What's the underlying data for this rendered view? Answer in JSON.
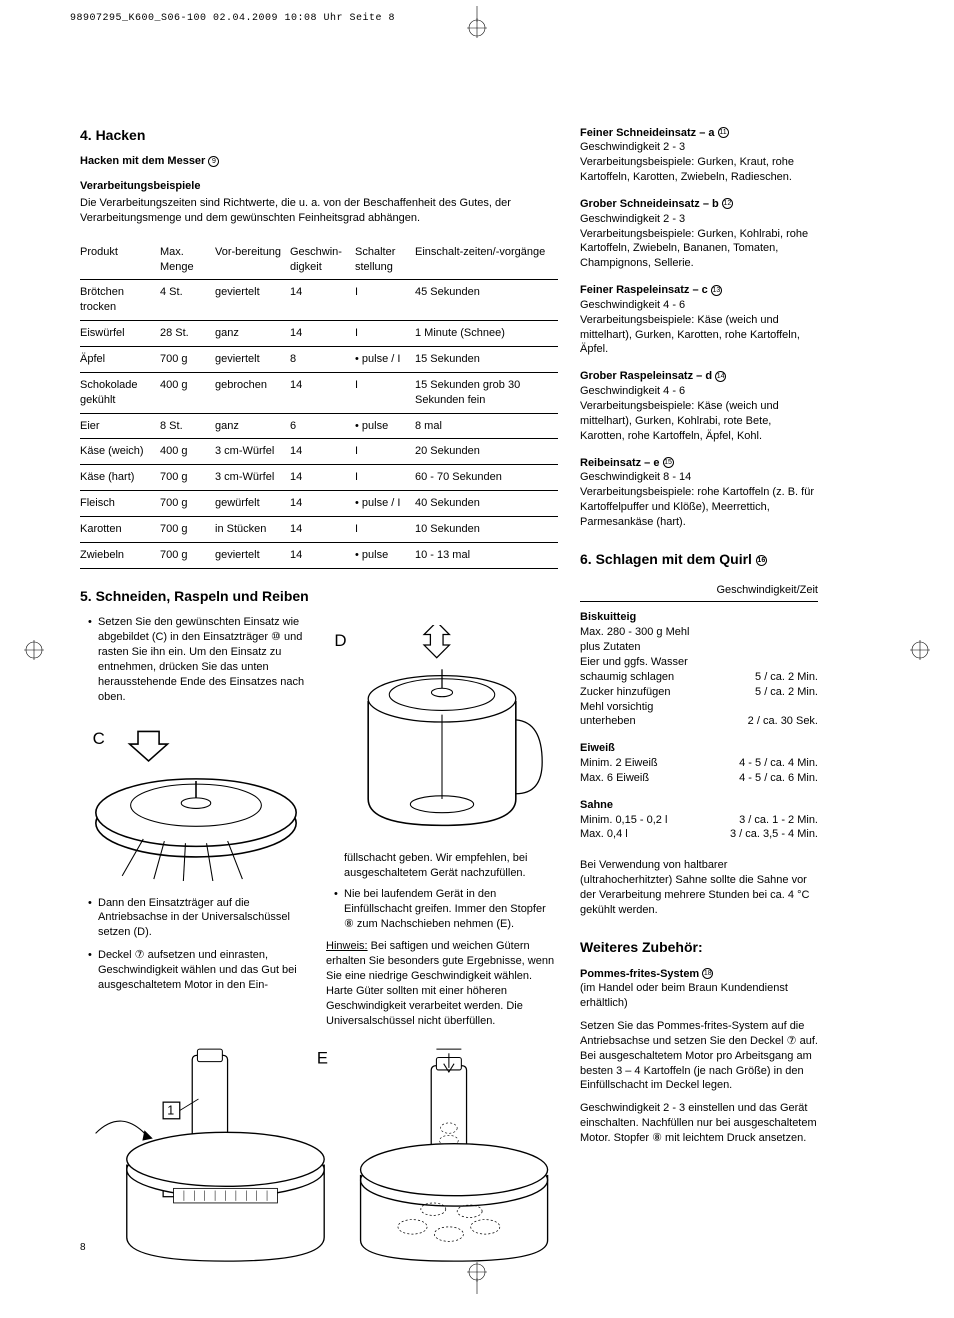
{
  "header_line": "98907295_K600_S06-100  02.04.2009  10:08 Uhr  Seite 8",
  "page_number": "8",
  "section4": {
    "title": "4. Hacken",
    "subtitle1": "Hacken mit dem Messer",
    "subtitle1_ref": "⑨",
    "subtitle2": "Verarbeitungsbeispiele",
    "intro": "Die Verarbeitungszeiten sind Richtwerte, die u. a. von der Beschaffenheit des Gutes, der Verarbeitungsmenge und dem gewünschten Feinheitsgrad abhängen.",
    "columns": [
      "Produkt",
      "Max. Menge",
      "Vor-bereitung",
      "Geschwin-digkeit",
      "Schalter stellung",
      "Einschalt-zeiten/-vorgänge"
    ],
    "rows": [
      [
        "Brötchen trocken",
        "4 St.",
        "geviertelt",
        "14",
        "I",
        "45 Sekunden"
      ],
      [
        "Eiswürfel",
        "28 St.",
        "ganz",
        "14",
        "I",
        "1 Minute (Schnee)"
      ],
      [
        "Äpfel",
        "700 g",
        "geviertelt",
        "8",
        "• pulse / I",
        "15 Sekunden"
      ],
      [
        "Schokolade gekühlt",
        "400 g",
        "gebrochen",
        "14",
        "I",
        "15 Sekunden grob 30 Sekunden fein"
      ],
      [
        "Eier",
        "8 St.",
        "ganz",
        "6",
        "• pulse",
        "8 mal"
      ],
      [
        "Käse (weich)",
        "400 g",
        "3 cm-Würfel",
        "14",
        "I",
        "20 Sekunden"
      ],
      [
        "Käse (hart)",
        "700 g",
        "3 cm-Würfel",
        "14",
        "I",
        "60 - 70 Sekunden"
      ],
      [
        "Fleisch",
        "700 g",
        "gewürfelt",
        "14",
        "• pulse / I",
        "40 Sekunden"
      ],
      [
        "Karotten",
        "700 g",
        "in Stücken",
        "14",
        "I",
        "10 Sekunden"
      ],
      [
        "Zwiebeln",
        "700 g",
        "geviertelt",
        "14",
        "• pulse",
        "10 - 13 mal"
      ]
    ]
  },
  "section5": {
    "title": "5. Schneiden, Raspeln und Reiben",
    "b1": "Setzen Sie den gewünschten Einsatz wie abgebildet (C) in den Einsatzträger ⑩ und rasten Sie ihn ein. Um den Einsatz zu entnehmen, drücken Sie das unten herausstehende Ende des Einsatzes nach oben.",
    "b2": "Dann den Einsatzträger auf die Antriebsachse in der Universalschüssel setzen (D).",
    "b3": "Deckel ⑦ aufsetzen und einrasten, Geschwindigkeit wählen und das Gut bei ausgeschaltetem Motor in den Ein-",
    "p_col2a": "füllschacht geben. Wir empfehlen, bei ausgeschaltetem Gerät nachzufüllen.",
    "b4": "Nie bei laufendem Gerät in den Einfüllschacht greifen. Immer den Stopfer ⑧ zum Nachschieben nehmen (E).",
    "hinweis_label": "Hinweis:",
    "hinweis": " Bei saftigen und weichen Gütern erhalten Sie besonders gute Ergebnisse, wenn Sie eine niedrige Geschwindigkeit wählen. Harte Güter sollten mit einer höheren Geschwindigkeit verarbeitet werden. Die Universalschüssel nicht überfüllen."
  },
  "attachments": [
    {
      "title": "Feiner Schneideinsatz – a",
      "ref": "⑪",
      "speed": "Geschwindigkeit 2 - 3",
      "ex": "Verarbeitungsbeispiele: Gurken, Kraut, rohe Kartoffeln, Karotten, Zwiebeln, Radieschen."
    },
    {
      "title": "Grober Schneideinsatz – b",
      "ref": "⑫",
      "speed": "Geschwindigkeit 2 - 3",
      "ex": "Verarbeitungsbeispiele: Gurken, Kohlrabi, rohe Kartoffeln, Zwiebeln, Bananen, Tomaten, Champignons, Sellerie."
    },
    {
      "title": "Feiner Raspeleinsatz – c",
      "ref": "⑬",
      "speed": "Geschwindigkeit 4 - 6",
      "ex": "Verarbeitungsbeispiele: Käse (weich und mittelhart), Gurken, Karotten, rohe Kartoffeln, Äpfel."
    },
    {
      "title": "Grober Raspeleinsatz – d",
      "ref": "⑭",
      "speed": "Geschwindigkeit 4 - 6",
      "ex": "Verarbeitungsbeispiele: Käse (weich und mittelhart), Gurken, Kohlrabi, rote Bete, Karotten, rohe Kartoffeln, Äpfel, Kohl."
    },
    {
      "title": "Reibeinsatz – e",
      "ref": "⑮",
      "speed": "Geschwindigkeit 8 - 14",
      "ex": "Verarbeitungsbeispiele: rohe Kartoffeln (z. B. für Kartoffelpuffer und Klöße), Meerrettich, Parmesankäse (hart)."
    }
  ],
  "section6": {
    "title": "6. Schlagen mit dem Quirl",
    "ref": "⑯",
    "header_r": "Geschwindigkeit/Zeit",
    "biskuit": {
      "title": "Biskuitteig",
      "lines": [
        "Max. 280 - 300 g Mehl",
        "plus Zutaten",
        "Eier und ggfs. Wasser"
      ],
      "rows": [
        [
          "schaumig schlagen",
          "5 / ca. 2 Min."
        ],
        [
          "Zucker hinzufügen",
          "5 / ca. 2 Min."
        ],
        [
          "Mehl vorsichtig",
          ""
        ],
        [
          "unterheben",
          "2 / ca. 30 Sek."
        ]
      ]
    },
    "eiweiss": {
      "title": "Eiweiß",
      "rows": [
        [
          "Minim. 2 Eiweiß",
          "4 - 5 / ca. 4 Min."
        ],
        [
          "Max. 6 Eiweiß",
          "4 - 5 / ca. 6 Min."
        ]
      ]
    },
    "sahne": {
      "title": "Sahne",
      "rows": [
        [
          "Minim. 0,15 - 0,2 l",
          "3 / ca. 1 - 2 Min."
        ],
        [
          "Max. 0,4 l",
          "3 / ca. 3,5 - 4 Min."
        ]
      ]
    },
    "note": "Bei Verwendung von haltbarer (ultrahocherhitzter) Sahne sollte die Sahne vor der Verarbeitung mehrere Stunden bei ca. 4 °C gekühlt werden."
  },
  "zubehor": {
    "title": "Weiteres Zubehör:",
    "pf_title": "Pommes-frites-System",
    "pf_ref": "⑱",
    "pf_sub": "(im Handel oder beim Braun Kundendienst erhältlich)",
    "p1": "Setzen Sie das Pommes-frites-System auf die Antriebsachse und setzen Sie den Deckel ⑦ auf. Bei ausgeschaltetem Motor pro Arbeitsgang am besten 3 – 4 Kartoffeln (je nach Größe) in den Einfüllschacht im Deckel legen.",
    "p2": "Geschwindigkeit 2 - 3 einstellen und das Gerät einschalten. Nachfüllen nur bei ausgeschaltetem Motor. Stopfer ⑧ mit leichtem Druck ansetzen."
  }
}
